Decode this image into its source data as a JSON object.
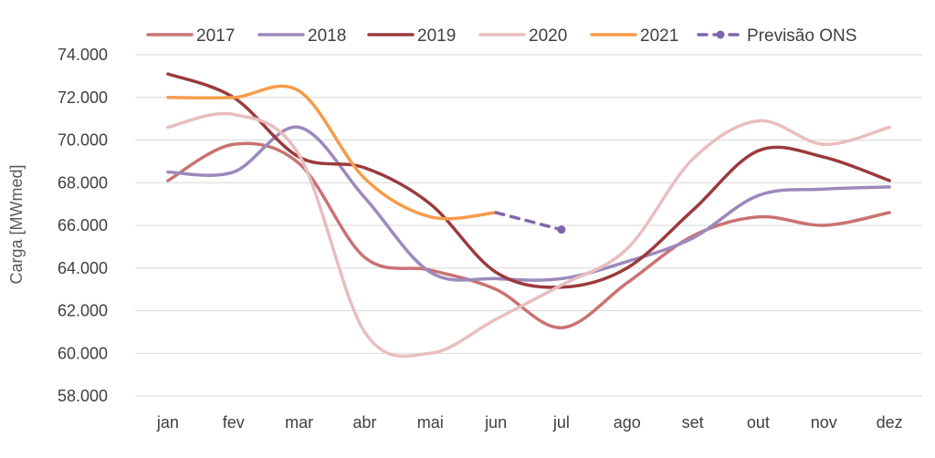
{
  "chart_data": {
    "type": "line",
    "title": "",
    "xlabel": "",
    "ylabel": "Carga [MWmed]",
    "ylim": [
      58000,
      74000
    ],
    "ytick_step": 2000,
    "ytick_labels": [
      "58.000",
      "60.000",
      "62.000",
      "64.000",
      "66.000",
      "68.000",
      "70.000",
      "72.000",
      "74.000"
    ],
    "grid": true,
    "legend_position": "top",
    "categories": [
      "jan",
      "fev",
      "mar",
      "abr",
      "mai",
      "jun",
      "jul",
      "ago",
      "set",
      "out",
      "nov",
      "dez"
    ],
    "series": [
      {
        "name": "2017",
        "color": "#c97272",
        "dashed": false,
        "values": [
          68100,
          69800,
          68900,
          64500,
          63900,
          63000,
          61200,
          63300,
          65500,
          66400,
          66000,
          66600
        ]
      },
      {
        "name": "2018",
        "color": "#9c89bd",
        "dashed": false,
        "values": [
          68500,
          68500,
          70600,
          67300,
          63800,
          63500,
          63500,
          64300,
          65400,
          67400,
          67700,
          67800
        ]
      },
      {
        "name": "2019",
        "color": "#9b3a3c",
        "dashed": false,
        "values": [
          73100,
          72000,
          69200,
          68700,
          67000,
          63800,
          63100,
          64000,
          66700,
          69500,
          69200,
          68100
        ]
      },
      {
        "name": "2020",
        "color": "#e8bebe",
        "dashed": false,
        "values": [
          70600,
          71200,
          69300,
          61000,
          60000,
          61600,
          63200,
          64900,
          69100,
          70900,
          69800,
          70600
        ]
      },
      {
        "name": "2021",
        "color": "#f79b4a",
        "dashed": false,
        "values": [
          72000,
          72000,
          72300,
          68200,
          66400,
          66600,
          null,
          null,
          null,
          null,
          null,
          null
        ]
      },
      {
        "name": "Previsão ONS",
        "color": "#7f66ac",
        "dashed": true,
        "values": [
          null,
          null,
          null,
          null,
          null,
          66600,
          65800,
          null,
          null,
          null,
          null,
          null
        ]
      }
    ]
  }
}
